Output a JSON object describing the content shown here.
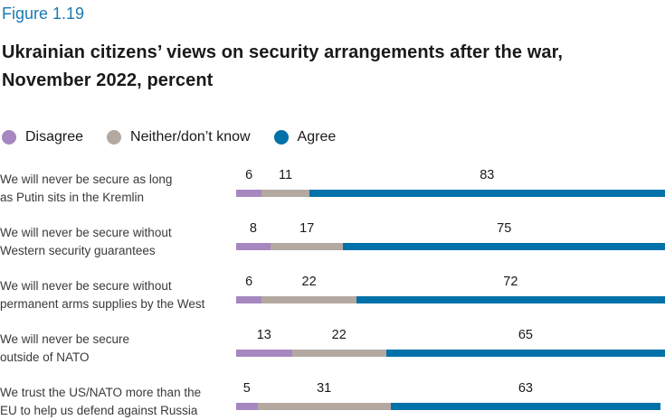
{
  "figure": {
    "label": "Figure 1.19",
    "title_line1": "Ukrainian citizens’ views on security arrangements after the war,",
    "title_line2": "November 2022, percent"
  },
  "colors": {
    "disagree": "#a687c0",
    "neither": "#b3a9a0",
    "agree": "#0071a9",
    "figure_label": "#1b7ab3"
  },
  "legend": [
    {
      "label": "Disagree",
      "color": "#a687c0"
    },
    {
      "label": "Neither/don’t know",
      "color": "#b3a9a0"
    },
    {
      "label": "Agree",
      "color": "#0071a9"
    }
  ],
  "chart_data": {
    "type": "bar",
    "orientation": "horizontal",
    "stacked": true,
    "unit": "percent",
    "title": "Ukrainian citizens’ views on security arrangements after the war, November 2022, percent",
    "xlabel": "",
    "ylabel": "",
    "xlim": [
      0,
      100
    ],
    "grid": false,
    "legend_position": "top",
    "categories": [
      "We will never be secure as long as Putin sits in the Kremlin",
      "We will never be secure without Western security guarantees",
      "We will never be secure without permanent arms supplies by the West",
      "We will never be secure outside of NATO",
      "We trust the US/NATO more than the EU to help us defend against Russia"
    ],
    "category_lines": [
      [
        "We will never be secure as long",
        "as Putin sits in the Kremlin"
      ],
      [
        "We will never be secure without",
        "Western security guarantees"
      ],
      [
        "We will never be secure without",
        "permanent arms supplies by the West"
      ],
      [
        "We will never be secure",
        "outside of NATO"
      ],
      [
        "We trust the US/NATO more than the",
        "EU to help us defend against Russia"
      ]
    ],
    "series": [
      {
        "name": "Disagree",
        "color": "#a687c0",
        "values": [
          6,
          8,
          6,
          13,
          5
        ]
      },
      {
        "name": "Neither/don’t know",
        "color": "#b3a9a0",
        "values": [
          11,
          17,
          22,
          22,
          31
        ]
      },
      {
        "name": "Agree",
        "color": "#0071a9",
        "values": [
          83,
          75,
          72,
          65,
          63
        ]
      }
    ]
  }
}
